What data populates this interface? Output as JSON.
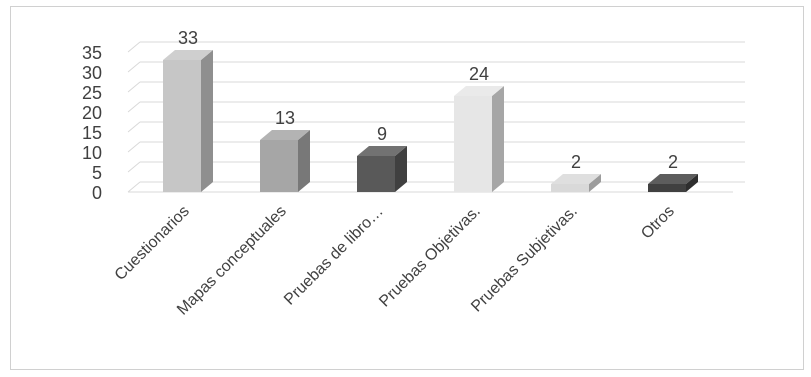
{
  "chart_data": {
    "type": "bar",
    "categories": [
      "Cuestionarios",
      "Mapas conceptuales",
      "Pruebas de libro…",
      "Pruebas Objetivas.",
      "Pruebas Subjetivas.",
      "Otros"
    ],
    "values": [
      33,
      13,
      9,
      24,
      2,
      2
    ],
    "ylim": [
      0,
      35
    ],
    "yticks": [
      0,
      5,
      10,
      15,
      20,
      25,
      30,
      35
    ],
    "grid": true,
    "legend": "none",
    "colors": [
      "#c6c6c6",
      "#a6a6a6",
      "#595959",
      "#e6e6e6",
      "#d9d9d9",
      "#404040"
    ]
  }
}
